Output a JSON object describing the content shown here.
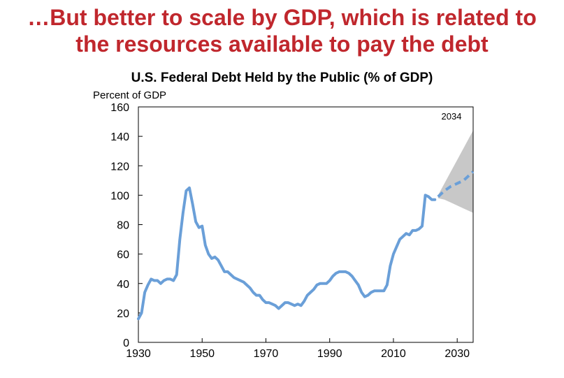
{
  "headline": {
    "line1": "…But better to scale by GDP, which is related to",
    "line2": "the resources available to pay the debt"
  },
  "chart_data": {
    "type": "line",
    "title": "U.S. Federal Debt Held by the Public (% of GDP)",
    "ylabel": "Percent of GDP",
    "xlabel": "",
    "xlim": [
      1930,
      2035
    ],
    "ylim": [
      0,
      160
    ],
    "xticks": [
      1930,
      1950,
      1970,
      1990,
      2010,
      2030
    ],
    "yticks": [
      0,
      20,
      40,
      60,
      80,
      100,
      120,
      140,
      160
    ],
    "annotation": "2034",
    "colors": {
      "line": "#6a9fd8",
      "band": "#c8c8c8"
    },
    "historical": {
      "x": [
        1930,
        1931,
        1932,
        1933,
        1934,
        1935,
        1936,
        1937,
        1938,
        1939,
        1940,
        1941,
        1942,
        1943,
        1944,
        1945,
        1946,
        1947,
        1948,
        1949,
        1950,
        1951,
        1952,
        1953,
        1954,
        1955,
        1956,
        1957,
        1958,
        1959,
        1960,
        1961,
        1962,
        1963,
        1964,
        1965,
        1966,
        1967,
        1968,
        1969,
        1970,
        1971,
        1972,
        1973,
        1974,
        1975,
        1976,
        1977,
        1978,
        1979,
        1980,
        1981,
        1982,
        1983,
        1984,
        1985,
        1986,
        1987,
        1988,
        1989,
        1990,
        1991,
        1992,
        1993,
        1994,
        1995,
        1996,
        1997,
        1998,
        1999,
        2000,
        2001,
        2002,
        2003,
        2004,
        2005,
        2006,
        2007,
        2008,
        2009,
        2010,
        2011,
        2012,
        2013,
        2014,
        2015,
        2016,
        2017,
        2018,
        2019,
        2020,
        2021,
        2022,
        2023
      ],
      "y": [
        16,
        20,
        34,
        39,
        43,
        42,
        42,
        40,
        42,
        43,
        43,
        42,
        46,
        70,
        88,
        103,
        105,
        94,
        82,
        78,
        79,
        66,
        60,
        57,
        58,
        56,
        52,
        48,
        48,
        46,
        44,
        43,
        42,
        41,
        39,
        37,
        34,
        32,
        32,
        29,
        27,
        27,
        26,
        25,
        23,
        25,
        27,
        27,
        26,
        25,
        26,
        25,
        28,
        32,
        34,
        36,
        39,
        40,
        40,
        40,
        42,
        45,
        47,
        48,
        48,
        48,
        47,
        45,
        42,
        39,
        34,
        31,
        32,
        34,
        35,
        35,
        35,
        35,
        39,
        52,
        60,
        65,
        70,
        72,
        74,
        73,
        76,
        76,
        77,
        79,
        100,
        99,
        97,
        97
      ]
    },
    "projection": {
      "x": [
        2024,
        2026,
        2028,
        2030,
        2032,
        2034,
        2035
      ],
      "y": [
        99,
        103,
        106,
        108,
        110,
        114,
        116
      ]
    },
    "uncertainty_band": {
      "x": [
        2024,
        2026,
        2028,
        2030,
        2032,
        2034,
        2035
      ],
      "upper": [
        100,
        108,
        116,
        124,
        132,
        140,
        144
      ],
      "lower": [
        98,
        97,
        95,
        93,
        91,
        89,
        88
      ]
    }
  }
}
